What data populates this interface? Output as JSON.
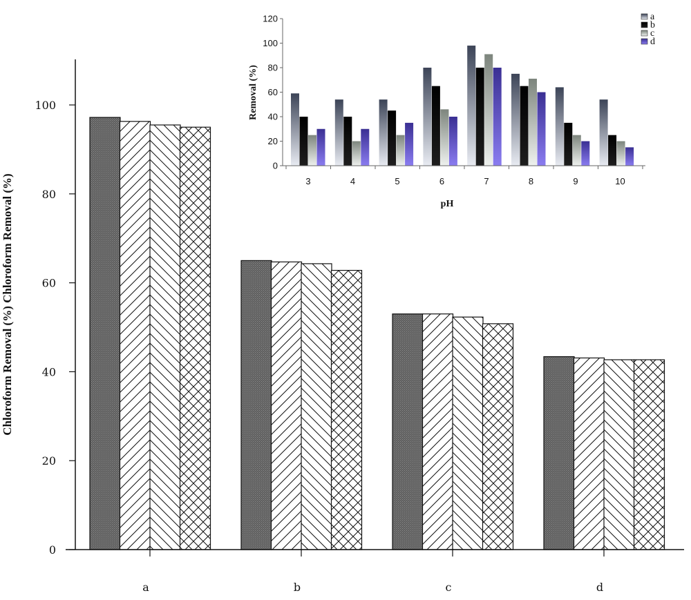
{
  "chart_data": [
    {
      "type": "bar",
      "ylabel": "Chloroform Removal (%) Chloroform Removal (%)",
      "xlabel": "",
      "categories": [
        "a",
        "b",
        "c",
        "d"
      ],
      "ylim": [
        0,
        110
      ],
      "yticks": [
        0,
        20,
        40,
        60,
        80,
        100
      ],
      "series": [
        {
          "values": [
            97.2,
            65.0,
            53.0,
            43.4
          ],
          "pattern": "dark-stipple",
          "color": "#6e6e6e"
        },
        {
          "values": [
            96.3,
            64.7,
            53.0,
            43.1
          ],
          "pattern": "forward-diagonal",
          "color": "#ffffff"
        },
        {
          "values": [
            95.5,
            64.3,
            52.3,
            42.7
          ],
          "pattern": "back-diagonal",
          "color": "#ffffff"
        },
        {
          "values": [
            95.0,
            62.8,
            50.8,
            42.7
          ],
          "pattern": "crosshatch",
          "color": "#ffffff"
        }
      ]
    },
    {
      "type": "bar",
      "xlabel": "pH",
      "ylabel": "Removal (%)",
      "categories": [
        "3",
        "4",
        "5",
        "6",
        "7",
        "8",
        "9",
        "10"
      ],
      "ylim": [
        0,
        120
      ],
      "yticks": [
        0,
        20,
        40,
        60,
        80,
        100,
        120
      ],
      "legend_position": "top-right",
      "series": [
        {
          "name": "a",
          "values": [
            59,
            54,
            54,
            80,
            98,
            75,
            64,
            54
          ],
          "color": "#9aa4b8"
        },
        {
          "name": "b",
          "values": [
            40,
            40,
            45,
            65,
            80,
            65,
            35,
            25
          ],
          "color": "#111111"
        },
        {
          "name": "c",
          "values": [
            25,
            20,
            25,
            46,
            91,
            71,
            25,
            20
          ],
          "color": "#c9cfc9"
        },
        {
          "name": "d",
          "values": [
            30,
            30,
            35,
            40,
            80,
            60,
            20,
            15
          ],
          "color": "#6a5acd"
        }
      ]
    }
  ]
}
